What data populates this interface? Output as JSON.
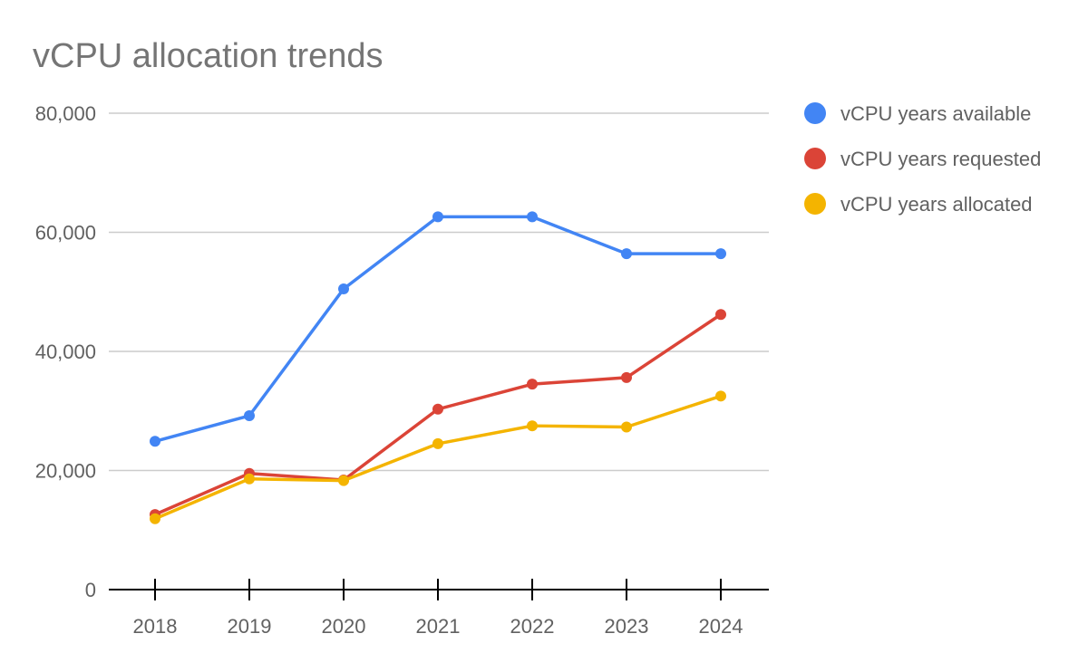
{
  "chart_data": {
    "type": "line",
    "title": "vCPU allocation trends",
    "xlabel": "",
    "ylabel": "",
    "categories": [
      "2018",
      "2019",
      "2020",
      "2021",
      "2022",
      "2023",
      "2024"
    ],
    "ylim": [
      0,
      80000
    ],
    "yticks": [
      0,
      20000,
      40000,
      60000,
      80000
    ],
    "ytick_labels": [
      "0",
      "20,000",
      "40,000",
      "60,000",
      "80,000"
    ],
    "grid": true,
    "legend_position": "right",
    "series": [
      {
        "name": "vCPU years available",
        "color": "#4285f4",
        "values": [
          24900,
          29200,
          50500,
          62600,
          62600,
          56400,
          56400
        ]
      },
      {
        "name": "vCPU years requested",
        "color": "#db4437",
        "values": [
          12600,
          19500,
          18400,
          30300,
          34500,
          35600,
          46200
        ]
      },
      {
        "name": "vCPU years allocated",
        "color": "#f4b400",
        "values": [
          11900,
          18600,
          18300,
          24500,
          27500,
          27300,
          32500
        ]
      }
    ]
  }
}
